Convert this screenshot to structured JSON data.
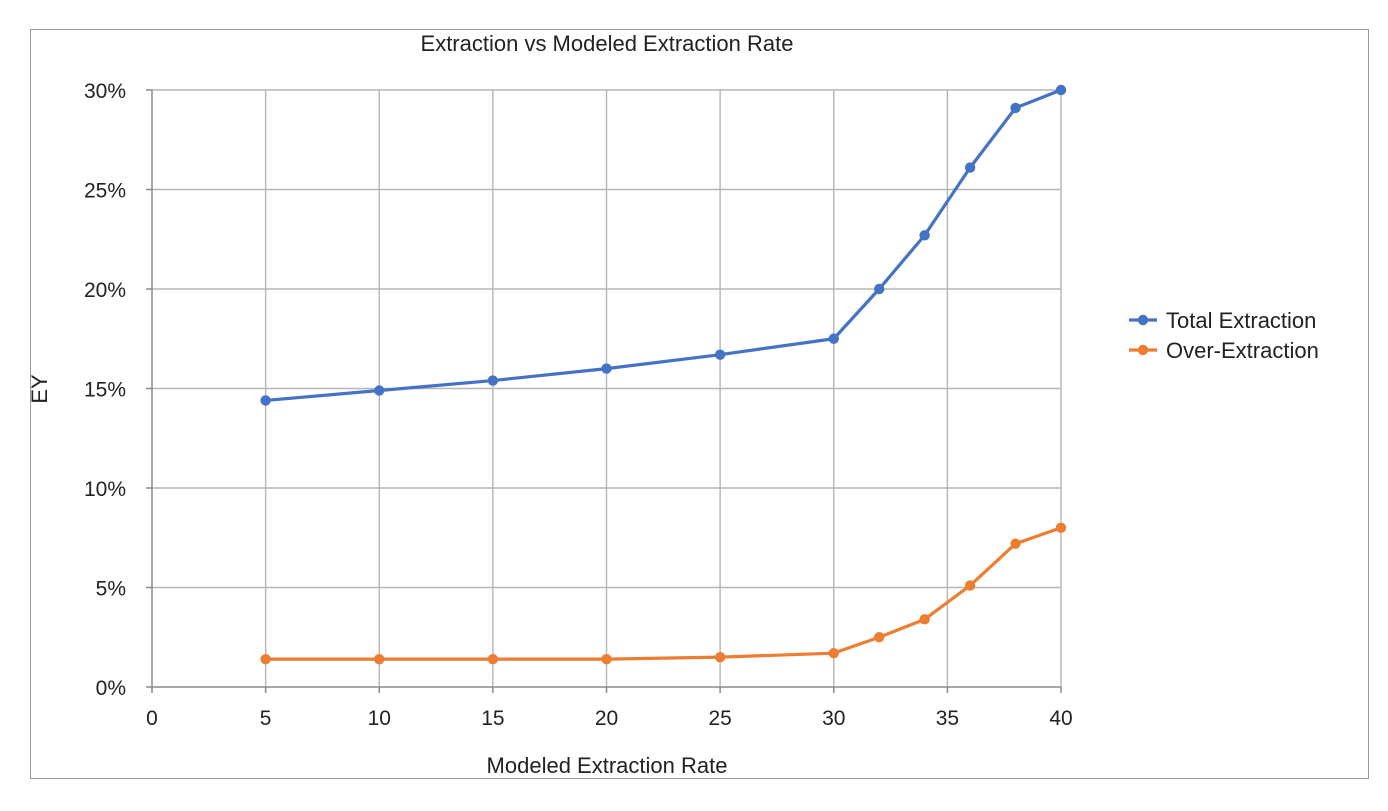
{
  "chart_data": {
    "type": "line",
    "title": "Extraction vs Modeled Extraction Rate",
    "xlabel": "Modeled Extraction Rate",
    "ylabel": "EY",
    "xlim": [
      0,
      40
    ],
    "ylim": [
      0,
      0.3
    ],
    "x_ticks": [
      0,
      5,
      10,
      15,
      20,
      25,
      30,
      35,
      40
    ],
    "x_tick_labels": [
      "0",
      "5",
      "10",
      "15",
      "20",
      "25",
      "30",
      "35",
      "40"
    ],
    "y_ticks": [
      0,
      0.05,
      0.1,
      0.15,
      0.2,
      0.25,
      0.3
    ],
    "y_tick_labels": [
      "0%",
      "5%",
      "10%",
      "15%",
      "20%",
      "25%",
      "30%"
    ],
    "grid": true,
    "legend_position": "right",
    "x": [
      5,
      10,
      15,
      20,
      25,
      30,
      32,
      34,
      36,
      38,
      40
    ],
    "series": [
      {
        "name": "Total Extraction",
        "color": "#4472C4",
        "values": [
          0.144,
          0.149,
          0.154,
          0.16,
          0.167,
          0.175,
          0.2,
          0.227,
          0.261,
          0.291,
          0.3
        ]
      },
      {
        "name": "Over-Extraction",
        "color": "#ED7D31",
        "values": [
          0.014,
          0.014,
          0.014,
          0.014,
          0.015,
          0.017,
          0.025,
          0.034,
          0.051,
          0.072,
          0.08
        ]
      }
    ]
  }
}
